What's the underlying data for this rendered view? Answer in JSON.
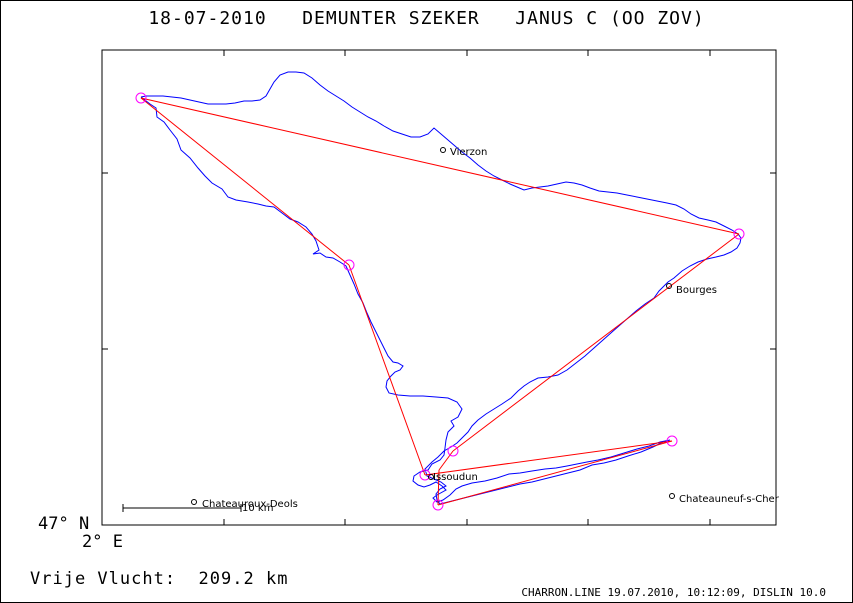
{
  "title": {
    "date": "18-07-2010",
    "pilot": "DEMUNTER SZEKER",
    "glider": "JANUS C (OO ZOV)"
  },
  "axes": {
    "lat_label": "47° N",
    "lon_label": "2° E"
  },
  "scale_bar_label": "10 km",
  "places": [
    {
      "name": "Vierzon"
    },
    {
      "name": "Bourges"
    },
    {
      "name": "Issoudun"
    },
    {
      "name": "Chateauroux-Deols"
    },
    {
      "name": "Chateauneuf-s-Cher"
    }
  ],
  "footer": {
    "flight_label": "Vrije Vlucht:",
    "distance": "209.2 km",
    "file_info": "CHARRON.LINE 19.07.2010, 10:12:09, DISLIN 10.0"
  },
  "colors": {
    "track": "#0000ff",
    "task_line": "#ff0000",
    "turnpoint": "#ff00ff",
    "frame": "#000000"
  }
}
